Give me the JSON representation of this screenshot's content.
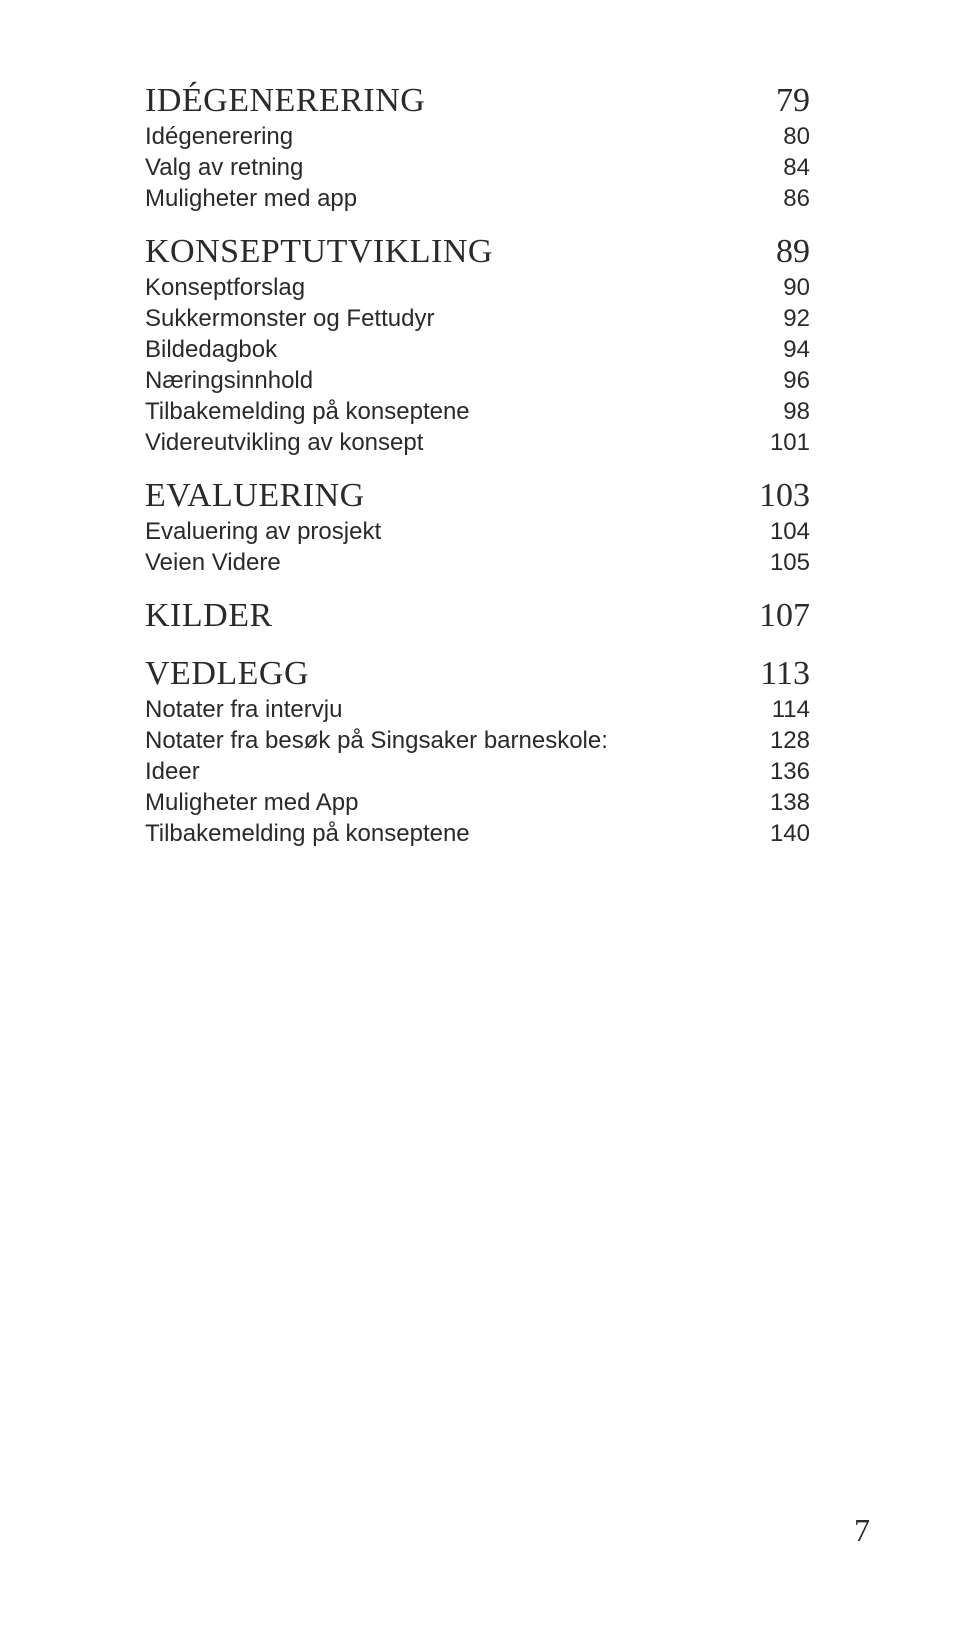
{
  "toc": [
    {
      "heading": {
        "label": "IDÉGENERERING",
        "page": "79"
      },
      "items": [
        {
          "label": "Idégenerering",
          "page": "80"
        },
        {
          "label": "Valg av retning",
          "page": "84"
        },
        {
          "label": "Muligheter med app",
          "page": "86"
        }
      ]
    },
    {
      "heading": {
        "label": "KONSEPTUTVIKLING",
        "page": "89"
      },
      "items": [
        {
          "label": "Konseptforslag",
          "page": "90"
        },
        {
          "label": "Sukkermonster og Fettudyr",
          "page": "92"
        },
        {
          "label": "Bildedagbok",
          "page": "94"
        },
        {
          "label": "Næringsinnhold",
          "page": "96"
        },
        {
          "label": "Tilbakemelding på konseptene",
          "page": "98"
        },
        {
          "label": "Videreutvikling av konsept",
          "page": "101"
        }
      ]
    },
    {
      "heading": {
        "label": "EVALUERING",
        "page": "103"
      },
      "items": [
        {
          "label": "Evaluering av prosjekt",
          "page": "104"
        },
        {
          "label": "Veien Videre",
          "page": "105"
        }
      ]
    },
    {
      "heading": {
        "label": "KILDER",
        "page": "107"
      },
      "items": []
    },
    {
      "heading": {
        "label": "VEDLEGG",
        "page": "113"
      },
      "items": [
        {
          "label": "Notater fra intervju",
          "page": "114"
        },
        {
          "label": "Notater fra besøk på Singsaker barneskole:",
          "page": "128"
        },
        {
          "label": "Ideer",
          "page": "136"
        },
        {
          "label": "Muligheter med App",
          "page": "138"
        },
        {
          "label": "Tilbakemelding på konseptene",
          "page": "140"
        }
      ]
    }
  ],
  "page_number": "7",
  "colors": {
    "background": "#ffffff",
    "text": "#2a2a2a"
  },
  "typography": {
    "heading_font": "Georgia serif small-caps",
    "heading_size_pt": 26,
    "sub_font": "Arial sans-serif",
    "sub_size_pt": 18
  }
}
